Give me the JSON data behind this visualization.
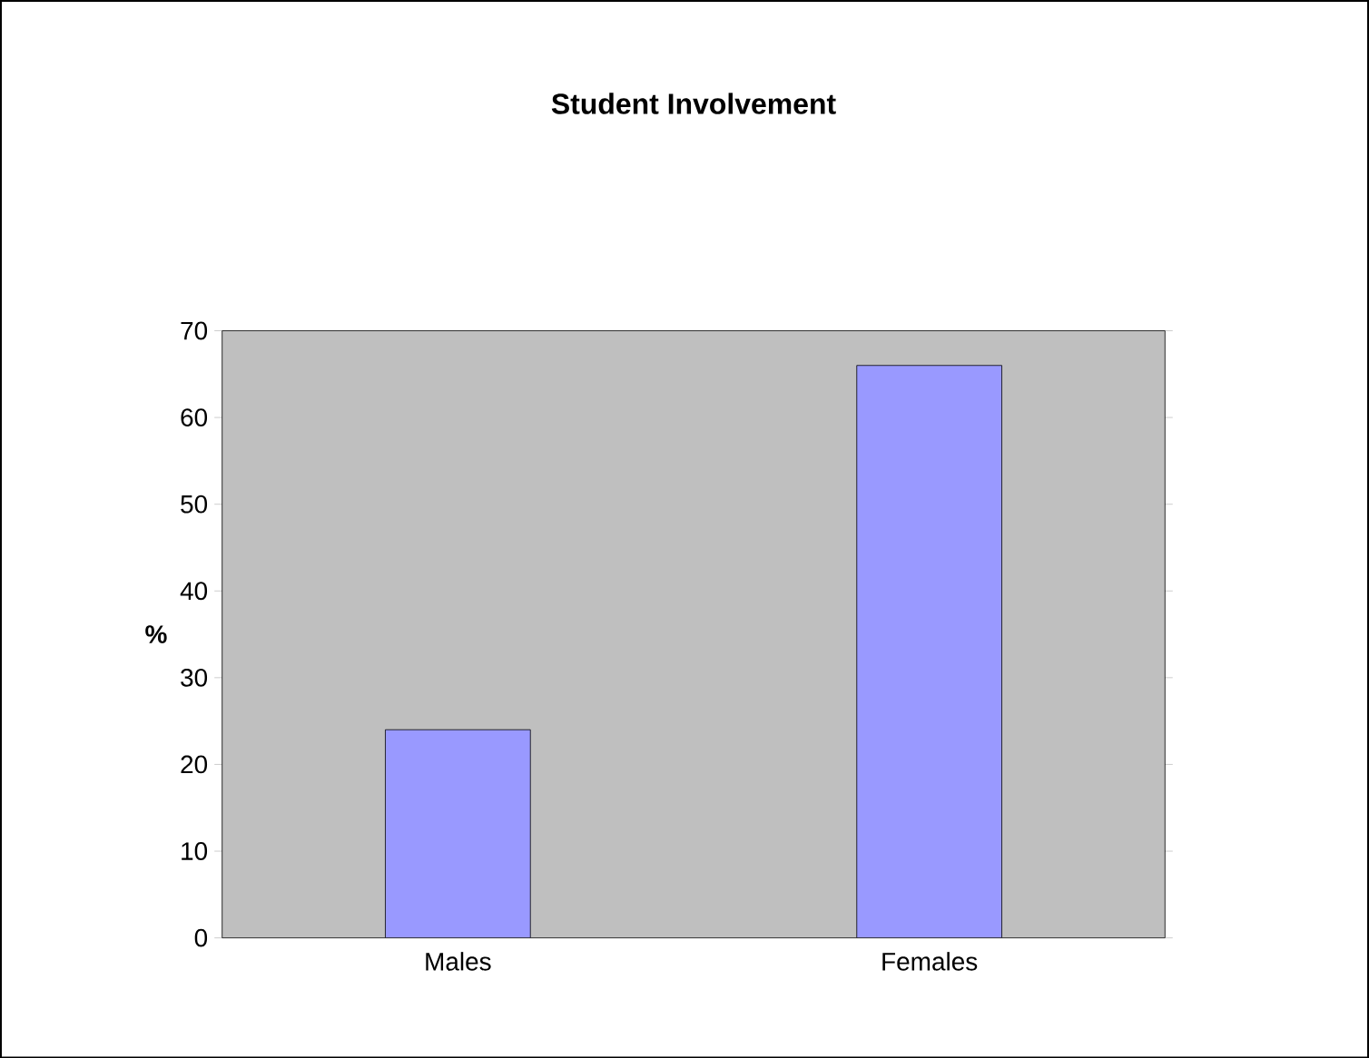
{
  "chart_data": {
    "type": "bar",
    "title": "Student Involvement",
    "ylabel": "%",
    "categories": [
      "Males",
      "Females"
    ],
    "values": [
      24,
      66
    ],
    "color": "#9999ff",
    "ylim": [
      0,
      70
    ],
    "yticks": [
      0,
      10,
      20,
      30,
      40,
      50,
      60,
      70
    ],
    "grid": false
  }
}
